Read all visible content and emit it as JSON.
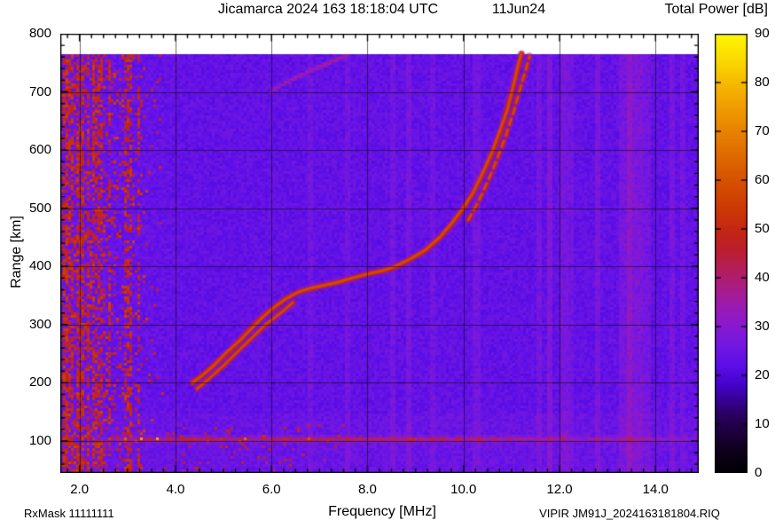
{
  "header": {
    "title": "Jicamarca 2024 163 18:18:04 UTC",
    "date": "11Jun24",
    "colorbar_title": "Total Power [dB]"
  },
  "footer": {
    "rx_mask": "RxMask 11111111",
    "file_label": "VIPIR  JM91J_2024163181804.RIQ"
  },
  "chart_data": {
    "type": "heatmap",
    "title": "Jicamarca 2024 163 18:18:04 UTC",
    "subtitle": "11Jun24",
    "xlabel": "Frequency [MHz]",
    "ylabel": "Range [km]",
    "colorbar_label": "Total Power [dB]",
    "x_range": [
      1.6,
      14.9
    ],
    "y_range": [
      45,
      800
    ],
    "data_top_km": 765,
    "x_ticks": [
      2,
      4,
      6,
      8,
      10,
      12,
      14
    ],
    "x_tick_labels": [
      "2.0",
      "4.0",
      "6.0",
      "8.0",
      "10.0",
      "12.0",
      "14.0"
    ],
    "x_minor_step": 0.25,
    "y_ticks": [
      100,
      200,
      300,
      400,
      500,
      600,
      700,
      800
    ],
    "y_minor_step": 20,
    "grid": true,
    "legend_position": "right-colorbar",
    "colorbar": {
      "min": 0,
      "max": 90,
      "ticks": [
        0,
        10,
        20,
        30,
        40,
        50,
        60,
        70,
        80,
        90
      ],
      "stops": [
        [
          0,
          "#000000"
        ],
        [
          6,
          "#140028"
        ],
        [
          12,
          "#2c0060"
        ],
        [
          18,
          "#4403c8"
        ],
        [
          22,
          "#5c0ee8"
        ],
        [
          26,
          "#7118e2"
        ],
        [
          30,
          "#8819d2"
        ],
        [
          34,
          "#9b1bb4"
        ],
        [
          38,
          "#aa1d88"
        ],
        [
          42,
          "#b41e58"
        ],
        [
          46,
          "#bd1e2e"
        ],
        [
          50,
          "#c52812"
        ],
        [
          55,
          "#cd3d04"
        ],
        [
          60,
          "#d65200"
        ],
        [
          65,
          "#df6a00"
        ],
        [
          70,
          "#e88300"
        ],
        [
          75,
          "#f09d00"
        ],
        [
          80,
          "#f6ba00"
        ],
        [
          85,
          "#fbdc00"
        ],
        [
          90,
          "#fff800"
        ]
      ]
    },
    "background_db": 22,
    "grid_color": "rgba(15,10,10,0.6)",
    "echo_trace_o_mode": [
      [
        4.35,
        200
      ],
      [
        4.55,
        212
      ],
      [
        4.8,
        230
      ],
      [
        5.05,
        250
      ],
      [
        5.3,
        270
      ],
      [
        5.55,
        292
      ],
      [
        5.8,
        312
      ],
      [
        6.05,
        330
      ],
      [
        6.3,
        344
      ],
      [
        6.55,
        355
      ],
      [
        6.8,
        362
      ],
      [
        7.1,
        368
      ],
      [
        7.4,
        374
      ],
      [
        7.7,
        380
      ],
      [
        8.0,
        387
      ],
      [
        8.3,
        393
      ],
      [
        8.6,
        400
      ],
      [
        8.9,
        412
      ],
      [
        9.2,
        428
      ],
      [
        9.5,
        450
      ],
      [
        9.75,
        472
      ],
      [
        10.0,
        500
      ],
      [
        10.2,
        528
      ],
      [
        10.4,
        560
      ],
      [
        10.6,
        597
      ],
      [
        10.78,
        635
      ],
      [
        10.9,
        668
      ],
      [
        11.0,
        700
      ],
      [
        11.08,
        728
      ],
      [
        11.14,
        748
      ],
      [
        11.2,
        765
      ]
    ],
    "echo_trace_x_lower": [
      [
        4.45,
        190
      ],
      [
        4.7,
        208
      ],
      [
        5.0,
        230
      ],
      [
        5.3,
        254
      ],
      [
        5.6,
        278
      ],
      [
        5.9,
        300
      ],
      [
        6.2,
        322
      ],
      [
        6.45,
        338
      ]
    ],
    "echo_trace_x_upper": [
      [
        10.1,
        480
      ],
      [
        10.3,
        510
      ],
      [
        10.5,
        545
      ],
      [
        10.7,
        585
      ],
      [
        10.88,
        625
      ],
      [
        11.05,
        668
      ],
      [
        11.18,
        705
      ],
      [
        11.3,
        738
      ],
      [
        11.38,
        762
      ]
    ],
    "second_hop_trace": [
      [
        5.95,
        702
      ],
      [
        6.2,
        715
      ],
      [
        6.5,
        728
      ],
      [
        6.85,
        741
      ],
      [
        7.2,
        753
      ],
      [
        7.55,
        765
      ]
    ],
    "trace_db": {
      "core": 58,
      "edge": 47,
      "halo": 34
    },
    "e_layer": {
      "center_km": 105,
      "half_width_km": 6,
      "freq_start": 2.25,
      "freq_full": 3.0,
      "freq_fade_from": 8.5,
      "peak_db_add": 20
    },
    "noise_region": {
      "freq_end": 3.75,
      "strong_columns": [
        1.7,
        1.78,
        1.95,
        2.05,
        2.15,
        2.3,
        2.42,
        2.6,
        2.95,
        3.05,
        3.2
      ],
      "speckle_db": [
        42,
        56
      ]
    },
    "rfi_stripes": [
      {
        "freq": 6.8,
        "width": 0.06,
        "delta": 2.5
      },
      {
        "freq": 7.55,
        "width": 0.06,
        "delta": 2.5
      },
      {
        "freq": 8.5,
        "width": 0.07,
        "delta": 3.0
      },
      {
        "freq": 8.85,
        "width": 0.06,
        "delta": 3.5
      },
      {
        "freq": 9.35,
        "width": 0.06,
        "delta": 2.5
      },
      {
        "freq": 10.25,
        "width": 0.07,
        "delta": 3.0
      },
      {
        "freq": 11.55,
        "width": 0.06,
        "delta": 3.0
      },
      {
        "freq": 11.75,
        "width": 0.05,
        "delta": 5.0
      },
      {
        "freq": 12.05,
        "width": 0.08,
        "delta": 3.5
      },
      {
        "freq": 12.2,
        "width": 0.05,
        "delta": 2.5
      },
      {
        "freq": 12.75,
        "width": 0.05,
        "delta": 4.0
      },
      {
        "freq": 13.35,
        "width": 0.12,
        "delta": 3.5
      },
      {
        "freq": 13.55,
        "width": 0.18,
        "delta": 4.5
      },
      {
        "freq": 13.8,
        "width": 0.08,
        "delta": 3.0
      },
      {
        "freq": 14.3,
        "width": 0.06,
        "delta": 3.5
      },
      {
        "freq": 14.55,
        "width": 0.06,
        "delta": 2.5
      }
    ]
  }
}
